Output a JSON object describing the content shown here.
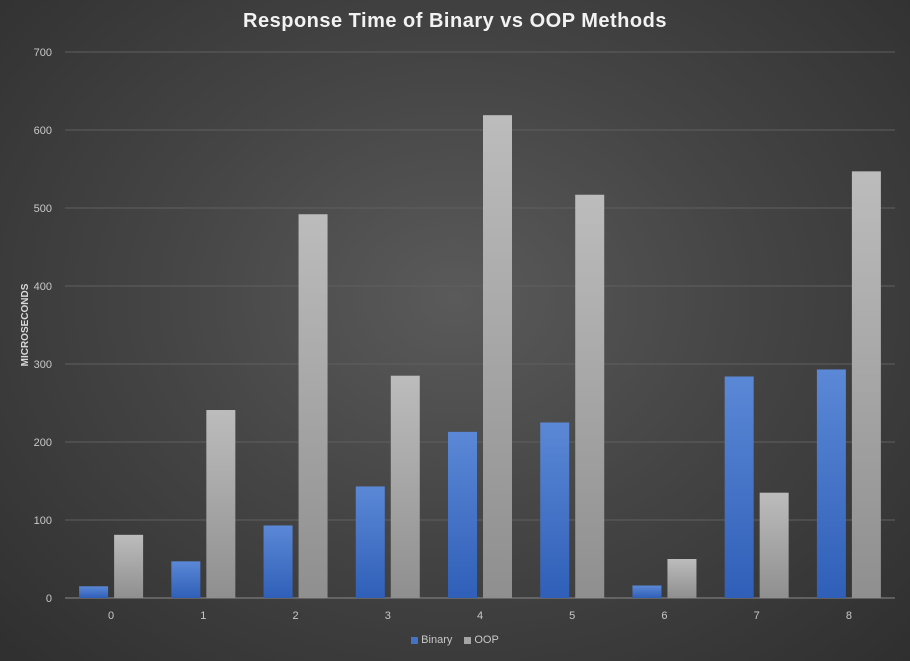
{
  "chart_data": {
    "type": "bar",
    "title": "Response Time of Binary vs OOP Methods",
    "xlabel": "",
    "ylabel": "MICROSECONDS",
    "ylim": [
      0,
      700
    ],
    "yticks": [
      0,
      100,
      200,
      300,
      400,
      500,
      600,
      700
    ],
    "categories": [
      "0",
      "1",
      "2",
      "3",
      "4",
      "5",
      "6",
      "7",
      "8"
    ],
    "series": [
      {
        "name": "Binary",
        "color": "#4472c4",
        "values": [
          15,
          47,
          93,
          143,
          213,
          225,
          16,
          284,
          293
        ]
      },
      {
        "name": "OOP",
        "color": "#a5a5a5",
        "values": [
          81,
          241,
          492,
          285,
          619,
          517,
          50,
          135,
          547
        ]
      }
    ],
    "grid": true,
    "legend": "bottom"
  }
}
